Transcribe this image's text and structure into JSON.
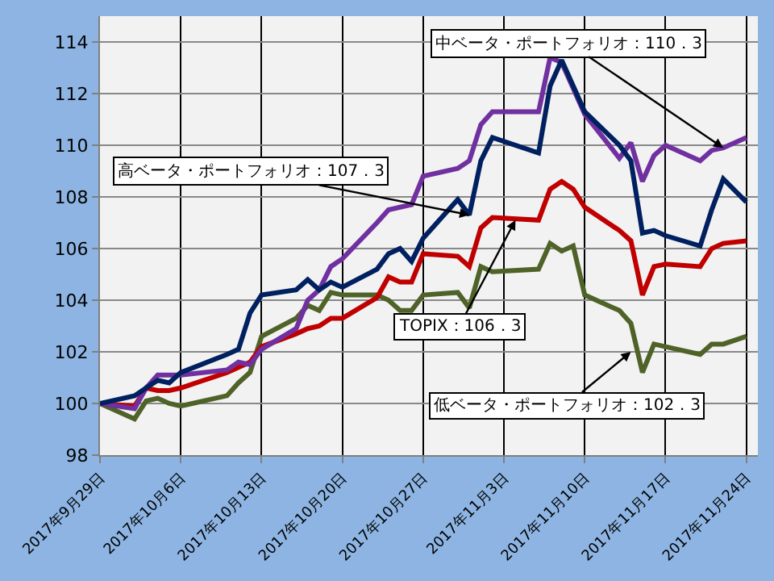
{
  "chart_data": {
    "type": "line",
    "x": [
      "2017-09-29",
      "2017-10-02",
      "2017-10-03",
      "2017-10-04",
      "2017-10-05",
      "2017-10-06",
      "2017-10-10",
      "2017-10-11",
      "2017-10-12",
      "2017-10-13",
      "2017-10-16",
      "2017-10-17",
      "2017-10-18",
      "2017-10-19",
      "2017-10-20",
      "2017-10-23",
      "2017-10-24",
      "2017-10-25",
      "2017-10-26",
      "2017-10-27",
      "2017-10-30",
      "2017-10-31",
      "2017-11-01",
      "2017-11-02",
      "2017-11-06",
      "2017-11-07",
      "2017-11-08",
      "2017-11-09",
      "2017-11-10",
      "2017-11-13",
      "2017-11-14",
      "2017-11-15",
      "2017-11-16",
      "2017-11-17",
      "2017-11-20",
      "2017-11-21",
      "2017-11-22",
      "2017-11-24"
    ],
    "series": [
      {
        "color": "#4f6228",
        "values": [
          100,
          99.4,
          100.1,
          100.2,
          100.0,
          99.9,
          100.3,
          100.8,
          101.2,
          102.6,
          103.3,
          103.8,
          103.6,
          104.3,
          104.2,
          104.2,
          104.0,
          103.6,
          103.6,
          104.2,
          104.3,
          103.7,
          105.3,
          105.1,
          105.2,
          106.2,
          105.9,
          106.1,
          104.2,
          103.6,
          103.1,
          101.2,
          102.3,
          102.2,
          101.9,
          102.3,
          102.3,
          102.6
        ]
      },
      {
        "color": "#c00000",
        "values": [
          100,
          99.9,
          100.6,
          100.5,
          100.5,
          100.6,
          101.2,
          101.4,
          101.6,
          102.2,
          102.7,
          102.9,
          103.0,
          103.3,
          103.3,
          104.1,
          104.9,
          104.7,
          104.7,
          105.8,
          105.7,
          105.3,
          106.8,
          107.2,
          107.1,
          108.3,
          108.6,
          108.3,
          107.6,
          106.7,
          106.3,
          104.2,
          105.3,
          105.4,
          105.3,
          106.0,
          106.2,
          106.3
        ]
      },
      {
        "color": "#7030a0",
        "values": [
          100,
          99.8,
          100.6,
          101.1,
          101.1,
          101.1,
          101.3,
          101.6,
          101.5,
          102.1,
          102.9,
          104.0,
          104.4,
          105.3,
          105.6,
          107.0,
          107.5,
          107.6,
          107.7,
          108.8,
          109.1,
          109.4,
          110.8,
          111.3,
          111.3,
          113.4,
          113.2,
          112.2,
          111.2,
          109.5,
          110.1,
          108.6,
          109.6,
          110.0,
          109.4,
          109.8,
          109.9,
          110.3
        ]
      },
      {
        "color": "#002060",
        "values": [
          100,
          100.3,
          100.6,
          100.9,
          100.8,
          101.2,
          101.9,
          102.1,
          103.5,
          104.2,
          104.4,
          104.8,
          104.4,
          104.7,
          104.5,
          105.2,
          105.8,
          106.0,
          105.5,
          106.4,
          107.9,
          107.3,
          109.4,
          110.3,
          109.7,
          112.3,
          113.3,
          112.3,
          111.3,
          110.0,
          109.4,
          106.6,
          106.7,
          106.5,
          106.1,
          107.5,
          108.7,
          107.8
        ]
      }
    ],
    "xlim": [
      "2017-09-29",
      "2017-11-25"
    ],
    "xticks": [
      {
        "value": "2017-09-29",
        "label": "2017年9月29日"
      },
      {
        "value": "2017-10-06",
        "label": "2017年10月6日"
      },
      {
        "value": "2017-10-13",
        "label": "2017年10月13日"
      },
      {
        "value": "2017-10-20",
        "label": "2017年10月20日"
      },
      {
        "value": "2017-10-27",
        "label": "2017年10月27日"
      },
      {
        "value": "2017-11-03",
        "label": "2017年11月3日"
      },
      {
        "value": "2017-11-10",
        "label": "2017年11月10日"
      },
      {
        "value": "2017-11-17",
        "label": "2017年11月17日"
      },
      {
        "value": "2017-11-24",
        "label": "2017年11月24日"
      }
    ],
    "ylim": [
      98,
      115
    ],
    "yticks": [
      98,
      100,
      102,
      104,
      106,
      108,
      110,
      112,
      114
    ],
    "grid": true,
    "marker": "none",
    "line_style": "solid",
    "annotations": [
      {
        "text": "高ベータ・ポートフォリオ：107．3",
        "x": "2017-10-31",
        "y": 107.3
      },
      {
        "text": "中ベータ・ポートフォリオ：110．3",
        "x": "2017-11-22",
        "y": 109.9
      },
      {
        "text": "TOPIX：106．3",
        "x": "2017-11-04",
        "y": 107.1
      },
      {
        "text": "低ベータ・ポートフォリオ：102．3",
        "x": "2017-11-14",
        "y": 102.0
      }
    ]
  }
}
